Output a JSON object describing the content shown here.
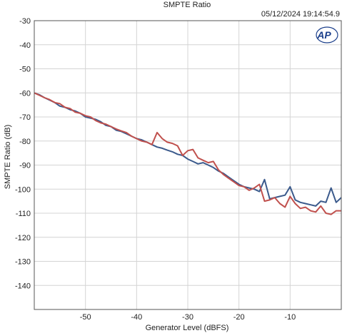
{
  "chart_data": {
    "type": "line",
    "title": "SMPTE Ratio",
    "timestamp": "05/12/2024 19:14:54.9",
    "logo": "AP",
    "xlabel": "Generator Level (dBFS)",
    "ylabel": "SMPTE Ratio (dB)",
    "xlim": [
      -60,
      0
    ],
    "ylim": [
      -150,
      -30
    ],
    "xticks": [
      -50,
      -40,
      -30,
      -20,
      -10
    ],
    "yticks": [
      -30,
      -40,
      -50,
      -60,
      -70,
      -80,
      -90,
      -100,
      -110,
      -120,
      -130,
      -140
    ],
    "grid": true,
    "series": [
      {
        "color": "#3b5a8c",
        "x": [
          -60,
          -59,
          -58,
          -57,
          -56,
          -55,
          -54,
          -53,
          -52,
          -51,
          -50,
          -49,
          -48,
          -47,
          -46,
          -45,
          -44,
          -43,
          -42,
          -41,
          -40,
          -39,
          -38,
          -37,
          -36,
          -35,
          -34,
          -33,
          -32,
          -31,
          -30,
          -29,
          -28,
          -27,
          -26,
          -25,
          -24,
          -23,
          -22,
          -21,
          -20,
          -19,
          -18,
          -17,
          -16,
          -15,
          -14,
          -13,
          -12,
          -11,
          -10,
          -9,
          -8,
          -7,
          -6,
          -5,
          -4,
          -3,
          -2,
          -1,
          0
        ],
        "y": [
          -60,
          -60.8,
          -62,
          -63,
          -64,
          -65.5,
          -66,
          -67,
          -67.5,
          -68.5,
          -70,
          -70.5,
          -71,
          -72,
          -73.5,
          -74,
          -75.5,
          -76,
          -77,
          -78,
          -79,
          -79.5,
          -80.5,
          -81.5,
          -82.5,
          -83,
          -83.8,
          -84.5,
          -85.5,
          -86,
          -87.5,
          -88.5,
          -89.5,
          -89,
          -90,
          -91,
          -92.5,
          -93.5,
          -95,
          -96.5,
          -98,
          -99,
          -99.5,
          -100,
          -101,
          -96,
          -104,
          -103.5,
          -103,
          -102.5,
          -99,
          -104.5,
          -105.5,
          -106,
          -106.5,
          -107,
          -105,
          -105.5,
          -99.5,
          -105.5,
          -103.5
        ]
      },
      {
        "color": "#c0504d",
        "x": [
          -60,
          -59,
          -58,
          -57,
          -56,
          -55,
          -54,
          -53,
          -52,
          -51,
          -50,
          -49,
          -48,
          -47,
          -46,
          -45,
          -44,
          -43,
          -42,
          -41,
          -40,
          -39,
          -38,
          -37,
          -36,
          -35,
          -34,
          -33,
          -32,
          -31,
          -30,
          -29,
          -28,
          -27,
          -26,
          -25,
          -24,
          -23,
          -22,
          -21,
          -20,
          -19,
          -18,
          -17,
          -16,
          -15,
          -14,
          -13,
          -12,
          -11,
          -10,
          -9,
          -8,
          -7,
          -6,
          -5,
          -4,
          -3,
          -2,
          -1,
          0
        ],
        "y": [
          -60,
          -61,
          -62,
          -62.8,
          -64,
          -64.5,
          -66,
          -66.5,
          -68,
          -68.5,
          -69.5,
          -70,
          -71.5,
          -72.5,
          -73,
          -74,
          -75,
          -75.8,
          -76.5,
          -78,
          -79,
          -80,
          -80.5,
          -81.5,
          -76.5,
          -79,
          -80.5,
          -81,
          -82,
          -86,
          -84,
          -83.5,
          -87,
          -88,
          -89,
          -88.5,
          -92,
          -94,
          -95.5,
          -97,
          -98.5,
          -99,
          -100.5,
          -99.5,
          -98,
          -105,
          -104.5,
          -103.5,
          -106,
          -107.5,
          -103,
          -106,
          -108,
          -107.5,
          -109,
          -109.5,
          -107,
          -110,
          -110.5,
          -109,
          -109
        ]
      }
    ]
  }
}
